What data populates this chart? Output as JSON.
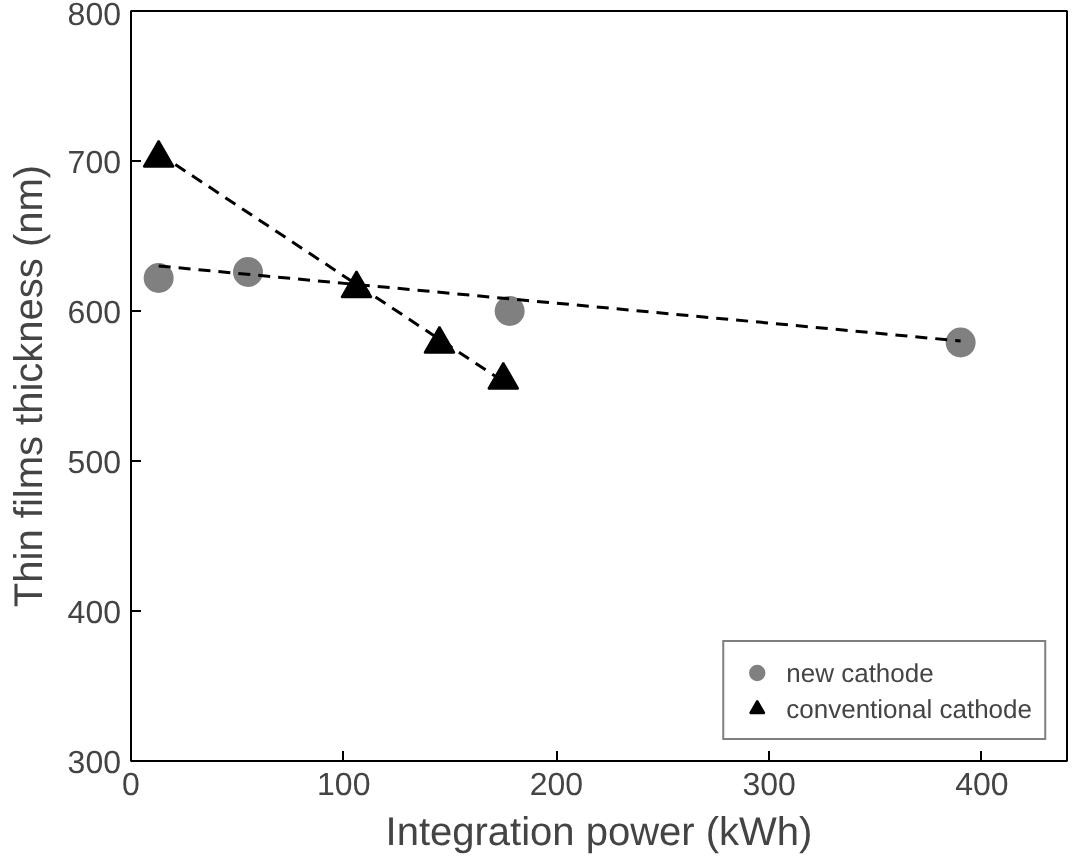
{
  "chart_data": {
    "type": "scatter",
    "xlabel": "Integration power (kWh)",
    "ylabel": "Thin films thickness (nm)",
    "xlim": [
      0,
      440
    ],
    "ylim": [
      300,
      800
    ],
    "xticks": [
      0,
      100,
      200,
      300,
      400
    ],
    "yticks": [
      300,
      400,
      500,
      600,
      700,
      800
    ],
    "grid": false,
    "legend": "bottom right",
    "series": [
      {
        "name": "new cathode",
        "color": "#808080",
        "marker": "circle",
        "x": [
          13,
          55,
          178,
          390
        ],
        "values": [
          622,
          626,
          600,
          579
        ]
      },
      {
        "name": "conventional cathode",
        "color": "#000000",
        "marker": "triangle",
        "x": [
          13,
          106,
          145,
          175
        ],
        "values": [
          702,
          615,
          578,
          554
        ]
      },
      {
        "type": "line",
        "color": "#000000",
        "line_style": "dashed",
        "marker": "none",
        "x": [
          13,
          390
        ],
        "values": [
          630,
          580
        ]
      },
      {
        "type": "line",
        "color": "#000000",
        "line_style": "dashed",
        "marker": "none",
        "x": [
          13,
          175
        ],
        "values": [
          705,
          553
        ]
      }
    ]
  }
}
